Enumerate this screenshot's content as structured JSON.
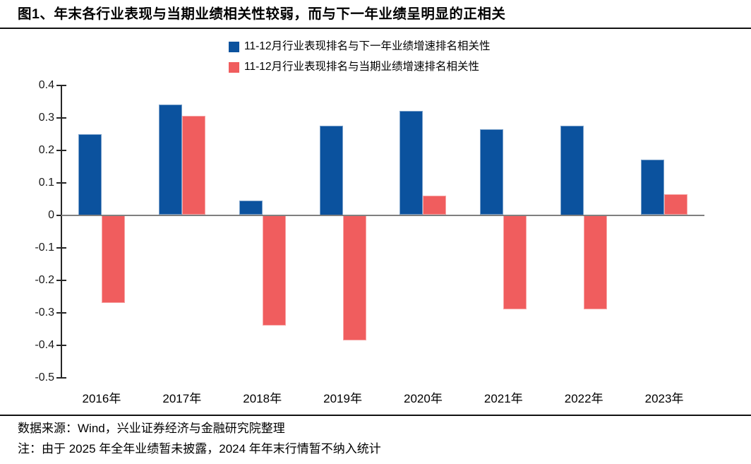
{
  "title": "图1、年末各行业表现与当期业绩相关性较弱，而与下一年业绩呈明显的正相关",
  "legend": [
    {
      "swatch": "blue-square-swatch",
      "color": "#0B529E",
      "label": "11-12月行业表现排名与下一年业绩增速排名相关性"
    },
    {
      "swatch": "red-square-swatch",
      "color": "#F05D5E",
      "label": "11-12月行业表现排名与当期业绩增速排名相关性"
    }
  ],
  "chart_data": {
    "type": "bar",
    "categories": [
      "2016年",
      "2017年",
      "2018年",
      "2019年",
      "2020年",
      "2021年",
      "2022年",
      "2023年"
    ],
    "series": [
      {
        "name": "11-12月行业表现排名与下一年业绩增速排名相关性",
        "color": "#0B529E",
        "values": [
          0.25,
          0.34,
          0.045,
          0.275,
          0.32,
          0.265,
          0.275,
          0.17
        ]
      },
      {
        "name": "11-12月行业表现排名与当期业绩增速排名相关性",
        "color": "#F05D5E",
        "values": [
          -0.27,
          0.305,
          -0.34,
          -0.385,
          0.06,
          -0.29,
          -0.29,
          0.065
        ]
      }
    ],
    "title": "",
    "xlabel": "",
    "ylabel": "",
    "ylim": [
      -0.5,
      0.4
    ],
    "ytick_step": 0.1,
    "yticks": [
      "0.4",
      "0.3",
      "0.2",
      "0.1",
      "0",
      "-0.1",
      "-0.2",
      "-0.3",
      "-0.4",
      "-0.5"
    ],
    "grid": false,
    "legend_position": "top",
    "zero_line_color": "#7F7F7F",
    "axis_color": "#262626"
  },
  "footer": {
    "source": "数据来源：Wind，兴业证券经济与金融研究院整理",
    "note": "注：由于 2025 年全年业绩暂未披露，2024 年年末行情暂不纳入统计"
  }
}
